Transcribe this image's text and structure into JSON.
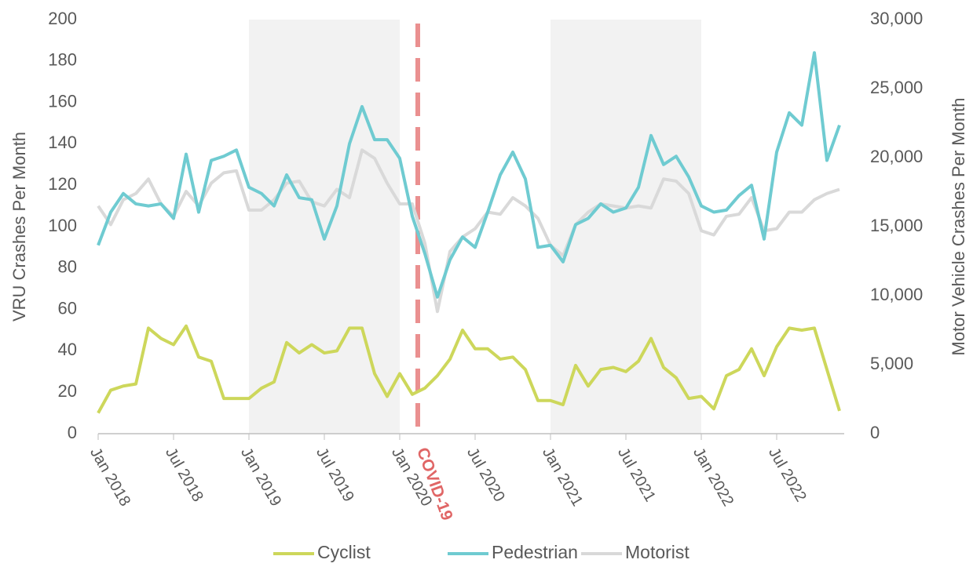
{
  "chart_data": {
    "type": "line",
    "y_label": "VRU Crashes Per Month",
    "y2_label": "Motor Vehicle Crashes Per Month",
    "annotation": "COVID-19",
    "categories": [
      "Jan 2018",
      null,
      null,
      null,
      null,
      null,
      "Jul 2018",
      null,
      null,
      null,
      null,
      null,
      "Jan 2019",
      null,
      null,
      null,
      null,
      null,
      "Jul 2019",
      null,
      null,
      null,
      null,
      null,
      "Jan 2020",
      null,
      null,
      null,
      null,
      null,
      "Jul 2020",
      null,
      null,
      null,
      null,
      null,
      "Jan 2021",
      null,
      null,
      null,
      null,
      null,
      "Jul 2021",
      null,
      null,
      null,
      null,
      null,
      "Jan 2022",
      null,
      null,
      null,
      null,
      null,
      "Jul 2022",
      null,
      null,
      null,
      null,
      null
    ],
    "series": [
      {
        "name": "Cyclist",
        "color": "#cdd75b",
        "values": [
          10,
          21,
          23,
          24,
          51,
          46,
          43,
          52,
          37,
          35,
          17,
          17,
          17,
          22,
          25,
          44,
          39,
          43,
          39,
          40,
          51,
          51,
          29,
          18,
          29,
          19,
          22,
          28,
          36,
          50,
          41,
          41,
          36,
          37,
          31,
          16,
          16,
          14,
          33,
          23,
          31,
          32,
          30,
          35,
          46,
          32,
          27,
          17,
          18,
          12,
          28,
          31,
          41,
          28,
          42,
          51,
          50,
          51,
          31,
          11
        ]
      },
      {
        "name": "Pedestrian",
        "color": "#6fcbd1",
        "values": [
          91,
          107,
          116,
          111,
          110,
          111,
          104,
          135,
          107,
          132,
          134,
          137,
          119,
          116,
          110,
          125,
          114,
          113,
          94,
          110,
          140,
          158,
          142,
          142,
          133,
          105,
          87,
          66,
          84,
          95,
          90,
          107,
          125,
          136,
          123,
          90,
          91,
          83,
          101,
          104,
          111,
          107,
          109,
          119,
          144,
          130,
          134,
          124,
          110,
          107,
          108,
          115,
          120,
          94,
          136,
          155,
          149,
          184,
          132,
          149
        ]
      },
      {
        "name": "Motorist",
        "color": "#d9d9d9",
        "axis": "y2",
        "values": [
          16500,
          15150,
          16950,
          17400,
          18450,
          16650,
          15750,
          17550,
          16500,
          18150,
          18900,
          19050,
          16200,
          16200,
          16950,
          18150,
          18300,
          16800,
          16500,
          17700,
          17100,
          20550,
          19950,
          18150,
          16650,
          16650,
          13800,
          8850,
          13200,
          14250,
          14850,
          16050,
          15900,
          17100,
          16500,
          15600,
          13650,
          12900,
          15150,
          16050,
          16650,
          16500,
          16350,
          16500,
          16350,
          18450,
          18300,
          17400,
          14700,
          14400,
          15750,
          15900,
          17100,
          14700,
          14850,
          16050,
          16050,
          16950,
          17400,
          17700
        ]
      }
    ],
    "ylim": [
      0,
      200
    ],
    "yticks": [
      0,
      20,
      40,
      60,
      80,
      100,
      120,
      140,
      160,
      180,
      200
    ],
    "y2lim": [
      0,
      30000
    ],
    "y2ticks": [
      0,
      {
        "value": 5000,
        "label": "5,000"
      },
      {
        "value": 10000,
        "label": "10,000"
      },
      {
        "value": 15000,
        "label": "15,000"
      },
      {
        "value": 20000,
        "label": "20,000"
      },
      {
        "value": 25000,
        "label": "25,000"
      },
      {
        "value": 30000,
        "label": "30,000"
      }
    ],
    "legend": "bottom"
  }
}
